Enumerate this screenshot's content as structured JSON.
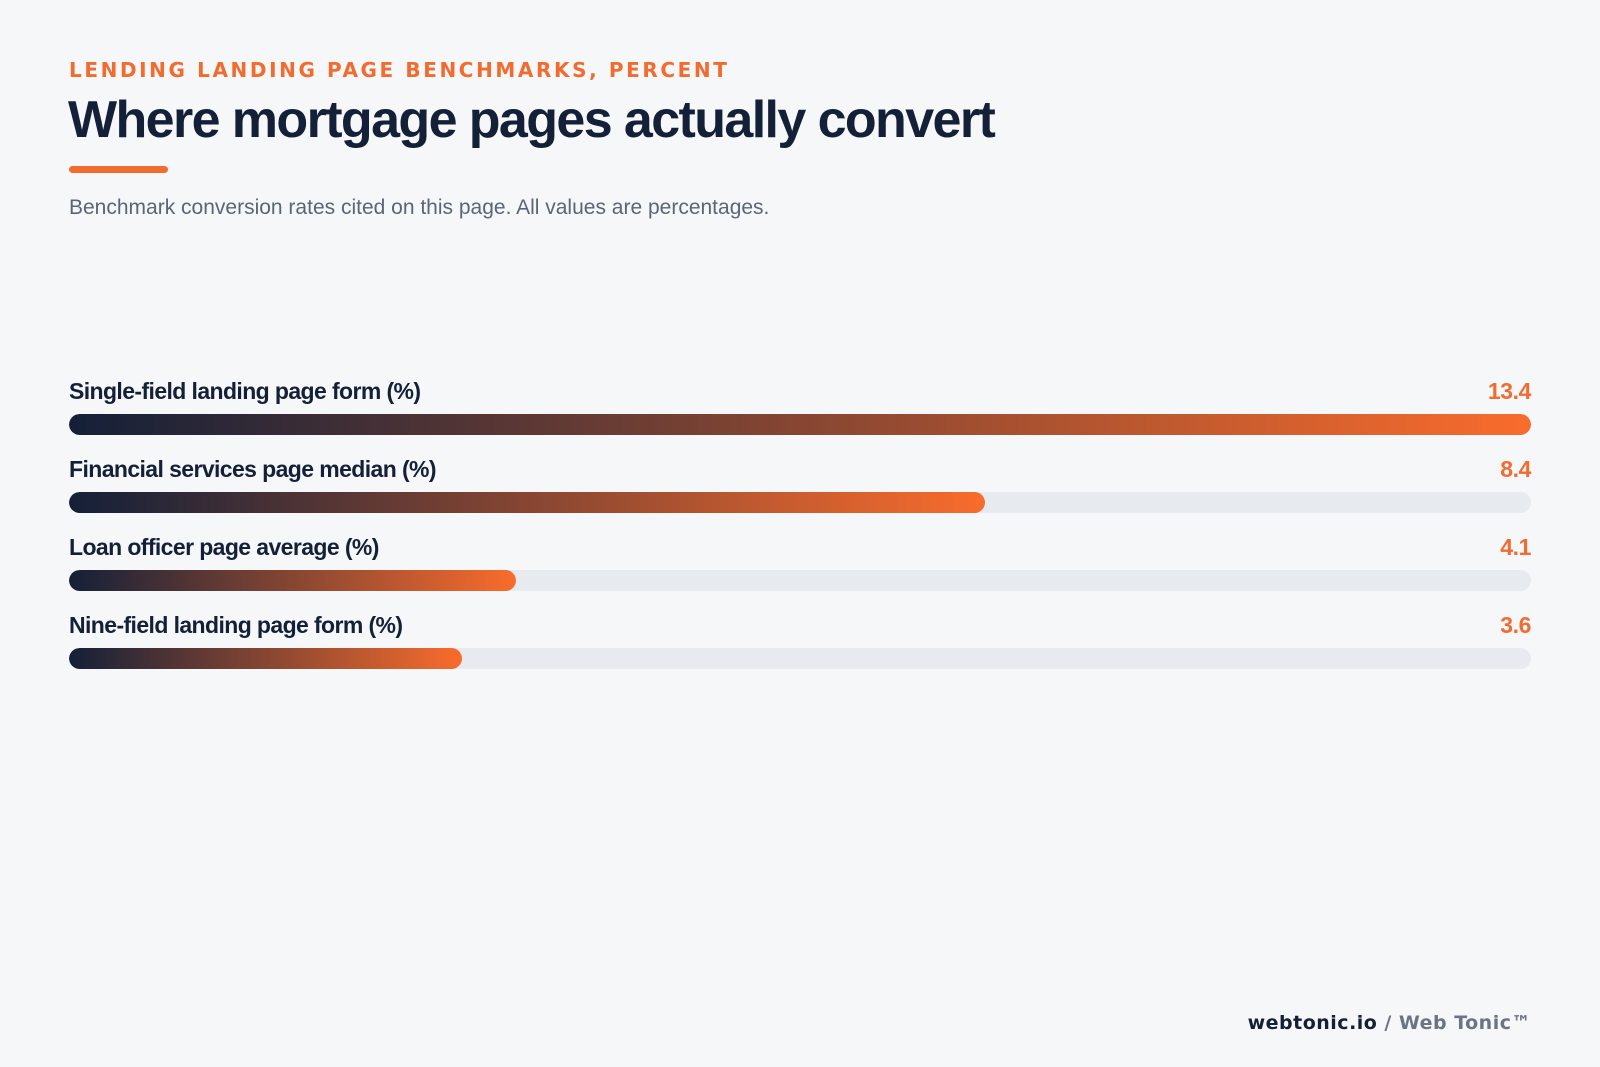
{
  "header": {
    "eyebrow": "LENDING LANDING PAGE BENCHMARKS, PERCENT",
    "title": "Where mortgage pages actually convert",
    "subtitle": "Benchmark conversion rates cited on this page. All values are percentages."
  },
  "colors": {
    "accent": "#f26b2f",
    "navy": "#142038",
    "track": "#e7eaee",
    "background": "#f6f7f9"
  },
  "chart_data": {
    "type": "bar",
    "orientation": "horizontal",
    "categories": [
      "Single-field landing page form (%)",
      "Financial services page median (%)",
      "Loan officer page average (%)",
      "Nine-field landing page form (%)"
    ],
    "values": [
      13.4,
      8.4,
      4.1,
      3.6
    ],
    "value_labels": [
      "13.4",
      "8.4",
      "4.1",
      "3.6"
    ],
    "xlim": [
      0,
      13.4
    ],
    "grid": false,
    "legend": "none"
  },
  "footer": {
    "domain": "webtonic.io",
    "separator": "/",
    "brand": "Web Tonic™"
  }
}
